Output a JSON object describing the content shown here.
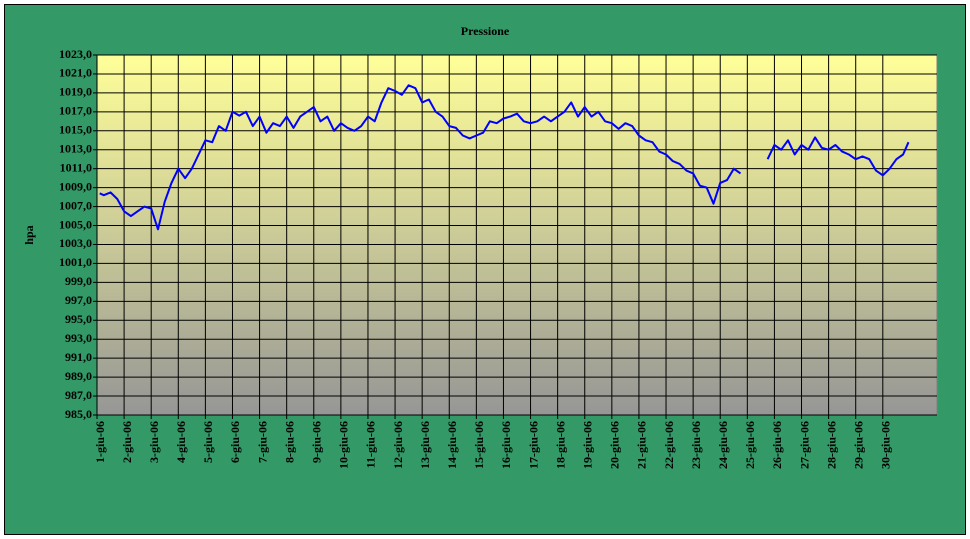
{
  "chart_data": {
    "type": "line",
    "title": "Pressione",
    "y_label": "hpa",
    "xlim": [
      1,
      32
    ],
    "ylim": [
      985,
      1023
    ],
    "grid": true,
    "xticks": [
      {
        "value": 1,
        "label": "1-giu-06"
      },
      {
        "value": 2,
        "label": "2-giu-06"
      },
      {
        "value": 3,
        "label": "3-giu-06"
      },
      {
        "value": 4,
        "label": "4-giu-06"
      },
      {
        "value": 5,
        "label": "5-giu-06"
      },
      {
        "value": 6,
        "label": "6-giu-06"
      },
      {
        "value": 7,
        "label": "7-giu-06"
      },
      {
        "value": 8,
        "label": "8-giu-06"
      },
      {
        "value": 9,
        "label": "9-giu-06"
      },
      {
        "value": 10,
        "label": "10-giu-06"
      },
      {
        "value": 11,
        "label": "11-giu-06"
      },
      {
        "value": 12,
        "label": "12-giu-06"
      },
      {
        "value": 13,
        "label": "13-giu-06"
      },
      {
        "value": 14,
        "label": "14-giu-06"
      },
      {
        "value": 15,
        "label": "15-giu-06"
      },
      {
        "value": 16,
        "label": "16-giu-06"
      },
      {
        "value": 17,
        "label": "17-giu-06"
      },
      {
        "value": 18,
        "label": "18-giu-06"
      },
      {
        "value": 19,
        "label": "19-giu-06"
      },
      {
        "value": 20,
        "label": "20-giu-06"
      },
      {
        "value": 21,
        "label": "21-giu-06"
      },
      {
        "value": 22,
        "label": "22-giu-06"
      },
      {
        "value": 23,
        "label": "23-giu-06"
      },
      {
        "value": 24,
        "label": "24-giu-06"
      },
      {
        "value": 25,
        "label": "25-giu-06"
      },
      {
        "value": 26,
        "label": "26-giu-06"
      },
      {
        "value": 27,
        "label": "27-giu-06"
      },
      {
        "value": 28,
        "label": "28-giu-06"
      },
      {
        "value": 29,
        "label": "29-giu-06"
      },
      {
        "value": 30,
        "label": "30-giu-06"
      }
    ],
    "yticks": [
      {
        "value": 985,
        "label": "985,0"
      },
      {
        "value": 987,
        "label": "987,0"
      },
      {
        "value": 989,
        "label": "989,0"
      },
      {
        "value": 991,
        "label": "991,0"
      },
      {
        "value": 993,
        "label": "993,0"
      },
      {
        "value": 995,
        "label": "995,0"
      },
      {
        "value": 997,
        "label": "997,0"
      },
      {
        "value": 999,
        "label": "999,0"
      },
      {
        "value": 1001,
        "label": "1001,0"
      },
      {
        "value": 1003,
        "label": "1003,0"
      },
      {
        "value": 1005,
        "label": "1005,0"
      },
      {
        "value": 1007,
        "label": "1007,0"
      },
      {
        "value": 1009,
        "label": "1009,0"
      },
      {
        "value": 1011,
        "label": "1011,0"
      },
      {
        "value": 1013,
        "label": "1013,0"
      },
      {
        "value": 1015,
        "label": "1015,0"
      },
      {
        "value": 1017,
        "label": "1017,0"
      },
      {
        "value": 1019,
        "label": "1019,0"
      },
      {
        "value": 1021,
        "label": "1021,0"
      },
      {
        "value": 1023,
        "label": "1023,0"
      }
    ],
    "x": [
      1.1,
      1.25,
      1.5,
      1.75,
      2,
      2.25,
      2.5,
      2.75,
      3,
      3.25,
      3.5,
      3.75,
      4,
      4.25,
      4.5,
      4.75,
      5,
      5.25,
      5.5,
      5.75,
      6,
      6.25,
      6.5,
      6.75,
      7,
      7.25,
      7.5,
      7.75,
      8,
      8.25,
      8.5,
      8.75,
      9,
      9.25,
      9.5,
      9.75,
      10,
      10.25,
      10.5,
      10.75,
      11,
      11.25,
      11.5,
      11.75,
      12,
      12.25,
      12.5,
      12.75,
      13,
      13.25,
      13.5,
      13.75,
      14,
      14.25,
      14.5,
      14.75,
      15,
      15.25,
      15.5,
      15.75,
      16,
      16.25,
      16.5,
      16.75,
      17,
      17.25,
      17.5,
      17.75,
      18,
      18.25,
      18.5,
      18.75,
      19,
      19.25,
      19.5,
      19.75,
      20,
      20.25,
      20.5,
      20.75,
      21,
      21.25,
      21.5,
      21.75,
      22,
      22.25,
      22.5,
      22.75,
      23,
      23.25,
      23.5,
      23.75,
      24,
      24.25,
      24.5,
      24.75,
      25.25,
      25.75,
      26,
      26.25,
      26.5,
      26.75,
      27,
      27.25,
      27.5,
      27.75,
      28,
      28.25,
      28.5,
      28.75,
      29,
      29.25,
      29.5,
      29.75,
      30,
      30.25,
      30.5,
      30.75,
      30.95
    ],
    "series": [
      {
        "name": "Pressione",
        "color": "#0000ff",
        "values": [
          1008.4,
          1008.2,
          1008.5,
          1007.8,
          1006.5,
          1006.0,
          1006.5,
          1007.0,
          1006.8,
          1004.6,
          1007.5,
          1009.5,
          1011.0,
          1010.0,
          1011.0,
          1012.5,
          1014.0,
          1013.8,
          1015.5,
          1015.0,
          1017.0,
          1016.6,
          1017.0,
          1015.5,
          1016.5,
          1014.8,
          1015.8,
          1015.5,
          1016.5,
          1015.3,
          1016.5,
          1017.0,
          1017.5,
          1016.0,
          1016.5,
          1015.0,
          1015.8,
          1015.3,
          1015.0,
          1015.5,
          1016.5,
          1016.0,
          1018.0,
          1019.5,
          1019.2,
          1018.8,
          1019.8,
          1019.5,
          1018.0,
          1018.3,
          1017.0,
          1016.5,
          1015.5,
          1015.3,
          1014.5,
          1014.2,
          1014.5,
          1014.8,
          1016.0,
          1015.8,
          1016.3,
          1016.5,
          1016.8,
          1016.0,
          1015.8,
          1016.0,
          1016.5,
          1016.0,
          1016.5,
          1017.0,
          1018.0,
          1016.5,
          1017.5,
          1016.5,
          1017.0,
          1016.0,
          1015.8,
          1015.2,
          1015.8,
          1015.5,
          1014.5,
          1014.0,
          1013.8,
          1012.8,
          1012.5,
          1011.8,
          1011.5,
          1010.8,
          1010.5,
          1009.2,
          1009.0,
          1007.3,
          1009.5,
          1009.8,
          1011.0,
          1010.5,
          null,
          1012.0,
          1013.5,
          1013.0,
          1014.0,
          1012.5,
          1013.5,
          1013.0,
          1014.3,
          1013.2,
          1013.0,
          1013.5,
          1012.8,
          1012.5,
          1012.0,
          1012.3,
          1012.0,
          1010.8,
          1010.3,
          1011.0,
          1012.0,
          1012.5,
          1013.8
        ]
      }
    ]
  }
}
